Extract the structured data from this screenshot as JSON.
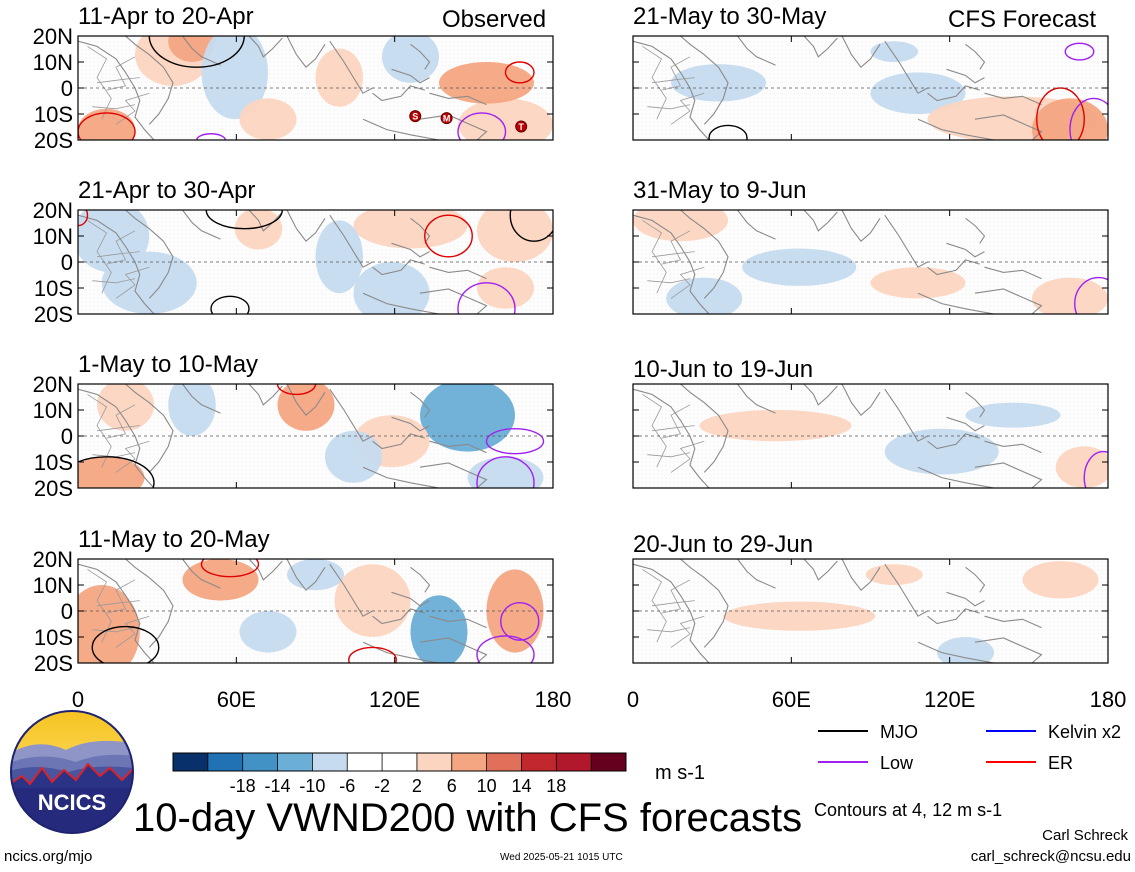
{
  "labels": {
    "observed": "Observed",
    "forecast": "CFS Forecast"
  },
  "panels_left": [
    {
      "title": "11-Apr to 20-Apr"
    },
    {
      "title": "21-Apr to 30-Apr"
    },
    {
      "title": "1-May to 10-May"
    },
    {
      "title": "11-May to 20-May"
    }
  ],
  "panels_right": [
    {
      "title": "21-May to 30-May"
    },
    {
      "title": "31-May to 9-Jun"
    },
    {
      "title": "10-Jun to 19-Jun"
    },
    {
      "title": "20-Jun to 29-Jun"
    }
  ],
  "lat_ticks": [
    "20N",
    "10N",
    "0",
    "10S",
    "20S"
  ],
  "lon_ticks": [
    "0",
    "60E",
    "120E",
    "180"
  ],
  "colorbar": {
    "colors": [
      "#08306b",
      "#2171b5",
      "#4292c6",
      "#6baed6",
      "#c6dbef",
      "#ffffff",
      "#ffffff",
      "#fcd5c0",
      "#f4a582",
      "#e0705a",
      "#c0282d",
      "#b2182b",
      "#67001f"
    ],
    "tick_labels": [
      "-18",
      "-14",
      "-10",
      "-6",
      "-2",
      "2",
      "6",
      "10",
      "14",
      "18"
    ],
    "units": "m s-1"
  },
  "legend": [
    {
      "label": "MJO",
      "color": "#000000"
    },
    {
      "label": "Kelvin x2",
      "color": "#0000ff"
    },
    {
      "label": "Low",
      "color": "#a020f0"
    },
    {
      "label": "ER",
      "color": "#ff0000"
    }
  ],
  "main_title": "10-day VWND200 with CFS forecasts",
  "contour_note": "Contours at 4, 12 m s-1",
  "author_name": "Carl Schreck",
  "author_email": "carl_schreck@ncsu.edu",
  "url": "ncics.org/mjo",
  "timestamp": "Wed 2025-05-21 1015 UTC",
  "logo_text": "NCICS",
  "storm_markers": [
    "S",
    "M",
    "T"
  ]
}
